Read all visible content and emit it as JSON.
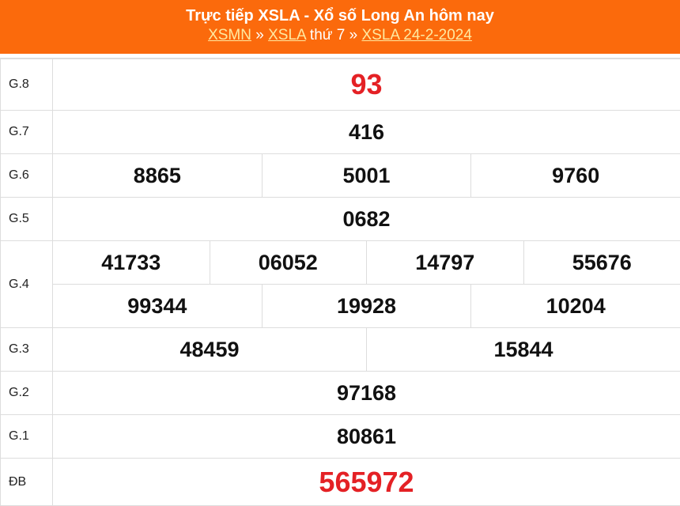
{
  "header": {
    "title": "Trực tiếp XSLA - Xổ số Long An hôm nay",
    "breadcrumb": {
      "link1": "XSMN",
      "sep1": " » ",
      "link2": "XSLA",
      "text": " thứ 7 » ",
      "link3": "XSLA 24-2-2024"
    }
  },
  "colors": {
    "header_bg": "#fb6a0c",
    "highlight": "#e42125"
  },
  "prizes": {
    "g8": {
      "label": "G.8",
      "values": [
        "93"
      ]
    },
    "g7": {
      "label": "G.7",
      "values": [
        "416"
      ]
    },
    "g6": {
      "label": "G.6",
      "values": [
        "8865",
        "5001",
        "9760"
      ]
    },
    "g5": {
      "label": "G.5",
      "values": [
        "0682"
      ]
    },
    "g4": {
      "label": "G.4",
      "values": [
        "41733",
        "06052",
        "14797",
        "55676",
        "99344",
        "19928",
        "10204"
      ]
    },
    "g3": {
      "label": "G.3",
      "values": [
        "48459",
        "15844"
      ]
    },
    "g2": {
      "label": "G.2",
      "values": [
        "97168"
      ]
    },
    "g1": {
      "label": "G.1",
      "values": [
        "80861"
      ]
    },
    "db": {
      "label": "ĐB",
      "values": [
        "565972"
      ]
    }
  }
}
